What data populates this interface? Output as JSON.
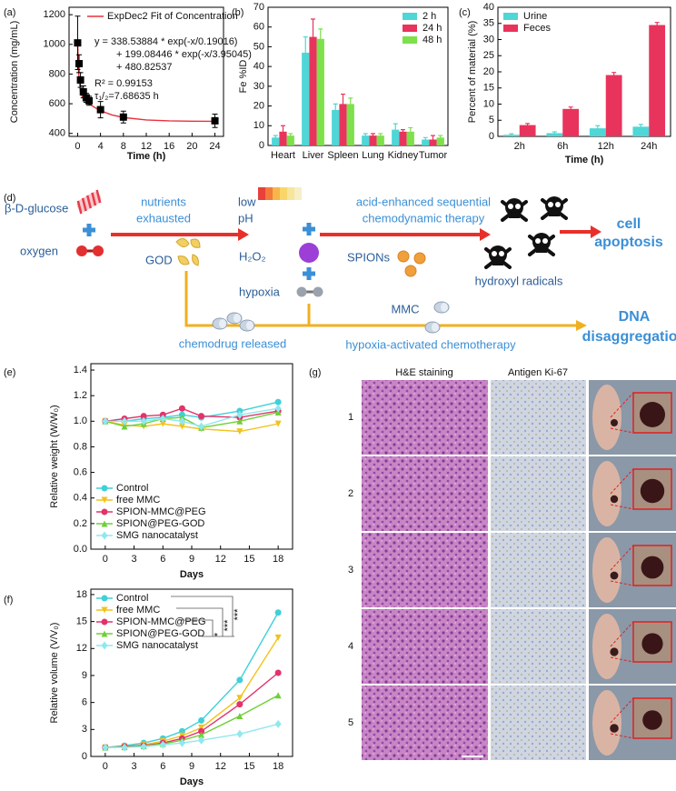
{
  "chart_data": [
    {
      "type": "line",
      "label": "(a)",
      "xlabel": "Time (h)",
      "ylabel": "Concentration (mg/mL)",
      "xlim": [
        -1.5,
        25.5
      ],
      "ylim": [
        380,
        1250
      ],
      "xticks": [
        0,
        4,
        8,
        12,
        16,
        20,
        24
      ],
      "yticks": [
        400,
        600,
        800,
        1000,
        1200
      ],
      "legend": "upper right",
      "annotations": [
        "y = 338.53884 * exp(-x/0.19016)",
        "+ 199.08446 * exp(-x/3.95045)",
        "+ 480.82537",
        "R² = 0.99153",
        "τ₁/₂=7.68635 h"
      ],
      "series": [
        {
          "name": "ExpDec2 Fit of Concentration",
          "color": "#e8323c",
          "x": [
            0,
            0.1,
            0.25,
            0.5,
            0.75,
            1,
            1.5,
            2,
            3,
            4,
            6,
            8,
            12,
            16,
            20,
            24
          ],
          "values": [
            1018.4,
            875.0,
            758.6,
            680.6,
            652.0,
            637.2,
            617.2,
            600.8,
            574.0,
            553.2,
            524.4,
            507.1,
            490.4,
            484.3,
            482.1,
            481.3
          ]
        },
        {
          "color": "#000000",
          "marker": "square",
          "line": false,
          "x": [
            0,
            0.25,
            0.5,
            1,
            1.5,
            2,
            4,
            8,
            24
          ],
          "values": [
            1010,
            870,
            760,
            680,
            640,
            620,
            560,
            510,
            485
          ],
          "errors": [
            180,
            60,
            50,
            40,
            30,
            30,
            55,
            40,
            45
          ]
        }
      ]
    },
    {
      "type": "bar",
      "label": "(b)",
      "ylabel": "Fe %ID",
      "ylim": [
        0,
        70
      ],
      "yticks": [
        0,
        10,
        20,
        30,
        40,
        50,
        60,
        70
      ],
      "legend": "upper right",
      "categories": [
        "Heart",
        "Liver",
        "Spleen",
        "Lung",
        "Kidney",
        "Tumor"
      ],
      "series": [
        {
          "name": "2 h",
          "color": "#4fd6d6",
          "values": [
            4,
            47,
            18,
            5,
            8,
            3
          ],
          "errors": [
            1,
            8,
            3,
            1,
            3,
            1
          ]
        },
        {
          "name": "24 h",
          "color": "#e8345c",
          "values": [
            7,
            55,
            21,
            5,
            7,
            3
          ],
          "errors": [
            3,
            9,
            5,
            1,
            1,
            2
          ]
        },
        {
          "name": "48 h",
          "color": "#7ee04a",
          "values": [
            5,
            54,
            21,
            5,
            7,
            4
          ],
          "errors": [
            1,
            5,
            3,
            1,
            2,
            1
          ]
        }
      ]
    },
    {
      "type": "bar",
      "label": "(c)",
      "xlabel": "Time (h)",
      "ylabel": "Percent of material (%)",
      "ylim": [
        0,
        40
      ],
      "yticks": [
        0,
        5,
        10,
        15,
        20,
        25,
        30,
        35,
        40
      ],
      "legend": "upper left",
      "categories": [
        "2h",
        "6h",
        "12h",
        "24h"
      ],
      "series": [
        {
          "name": "Urine",
          "color": "#4fd6d6",
          "values": [
            0.5,
            1,
            2.5,
            3
          ],
          "errors": [
            0.3,
            0.4,
            0.8,
            0.7
          ]
        },
        {
          "name": "Feces",
          "color": "#e8345c",
          "values": [
            3.5,
            8.5,
            19,
            34.5
          ],
          "errors": [
            0.5,
            0.6,
            0.8,
            0.8
          ]
        }
      ]
    },
    {
      "type": "line",
      "label": "(e)",
      "xlabel": "Days",
      "ylabel": "Relative weight (W/W₀)",
      "xlim": [
        -1.5,
        19.5
      ],
      "ylim": [
        0,
        1.45
      ],
      "xticks": [
        0,
        3,
        6,
        9,
        12,
        15,
        18
      ],
      "yticks": [
        {
          "value": 0,
          "label": "0.0"
        },
        0.2,
        0.4,
        0.6,
        0.8,
        {
          "value": 1,
          "label": "1.0"
        },
        1.2,
        1.4
      ],
      "legend": "lower left",
      "x": [
        0,
        2,
        4,
        6,
        8,
        10,
        14,
        18
      ],
      "series": [
        {
          "name": "Control",
          "color": "#3fd0d8",
          "marker": "circle",
          "values": [
            1,
            1.0,
            1.02,
            1.03,
            1.05,
            1.03,
            1.08,
            1.15
          ]
        },
        {
          "name": "free MMC",
          "color": "#f2c21a",
          "marker": "triangle-down",
          "values": [
            1,
            0.97,
            0.96,
            0.98,
            0.96,
            0.94,
            0.92,
            0.98
          ]
        },
        {
          "name": "SPION-MMC@PEG",
          "color": "#e2336b",
          "marker": "circle",
          "values": [
            1,
            1.02,
            1.04,
            1.05,
            1.1,
            1.04,
            1.03,
            1.08
          ]
        },
        {
          "name": "SPION@PEG-GOD",
          "color": "#6fcf3a",
          "marker": "triangle",
          "values": [
            1,
            0.96,
            0.98,
            1.02,
            1.03,
            0.95,
            1.0,
            1.07
          ]
        },
        {
          "name": "SMG nanocatalyst",
          "color": "#8fe8ee",
          "marker": "diamond",
          "values": [
            1,
            1.0,
            1.0,
            1.02,
            1.0,
            0.96,
            1.05,
            1.1
          ]
        }
      ]
    },
    {
      "type": "line",
      "label": "(f)",
      "xlabel": "Days",
      "ylabel": "Relative volume (V/V₀)",
      "xlim": [
        -1.5,
        19.5
      ],
      "ylim": [
        0,
        18.6
      ],
      "xticks": [
        0,
        3,
        6,
        9,
        12,
        15,
        18
      ],
      "yticks": [
        0,
        3,
        6,
        9,
        12,
        15,
        18
      ],
      "legend": "upper left",
      "x": [
        0,
        2,
        4,
        6,
        8,
        10,
        14,
        18
      ],
      "annotations": [
        "***",
        "***",
        "*"
      ],
      "series": [
        {
          "name": "Control",
          "color": "#3fd0d8",
          "marker": "circle",
          "values": [
            1,
            1.2,
            1.5,
            2.0,
            2.8,
            4.0,
            8.5,
            16
          ]
        },
        {
          "name": "free MMC",
          "color": "#f2c21a",
          "marker": "triangle-down",
          "values": [
            1,
            1.1,
            1.3,
            1.7,
            2.3,
            3.2,
            6.5,
            13.2
          ]
        },
        {
          "name": "SPION-MMC@PEG",
          "color": "#e2336b",
          "marker": "circle",
          "values": [
            1,
            1.1,
            1.2,
            1.5,
            2.0,
            2.8,
            5.8,
            9.3
          ]
        },
        {
          "name": "SPION@PEG-GOD",
          "color": "#6fcf3a",
          "marker": "triangle",
          "values": [
            1,
            1.05,
            1.15,
            1.4,
            1.8,
            2.4,
            4.5,
            6.8
          ]
        },
        {
          "name": "SMG nanocatalyst",
          "color": "#8fe8ee",
          "marker": "diamond",
          "values": [
            1,
            1.0,
            1.1,
            1.3,
            1.5,
            1.8,
            2.5,
            3.6
          ]
        }
      ]
    }
  ],
  "diagram": {
    "label": "(d)",
    "glucose": "β-D-glucose",
    "oxygen": "oxygen",
    "nutrients": [
      "nutrients",
      "exhausted"
    ],
    "god": "GOD",
    "low_ph": [
      "low",
      "pH"
    ],
    "h2o2": "H₂O₂",
    "hypoxia": "hypoxia",
    "cds": [
      "acid-enhanced sequential",
      "chemodynamic therapy"
    ],
    "spions": "SPIONs",
    "radicals": "hydroxyl radicals",
    "apoptosis": [
      "cell",
      "apoptosis"
    ],
    "mmc": "MMC",
    "released": "chemodrug released",
    "chemo": "hypoxia-activated chemotherapy",
    "dna": [
      "DNA",
      "disaggregation"
    ]
  },
  "histology": {
    "label": "(g)",
    "columns": [
      "H&E staining",
      "Antigen Ki-67"
    ],
    "rows": [
      "1",
      "2",
      "3",
      "4",
      "5"
    ]
  }
}
